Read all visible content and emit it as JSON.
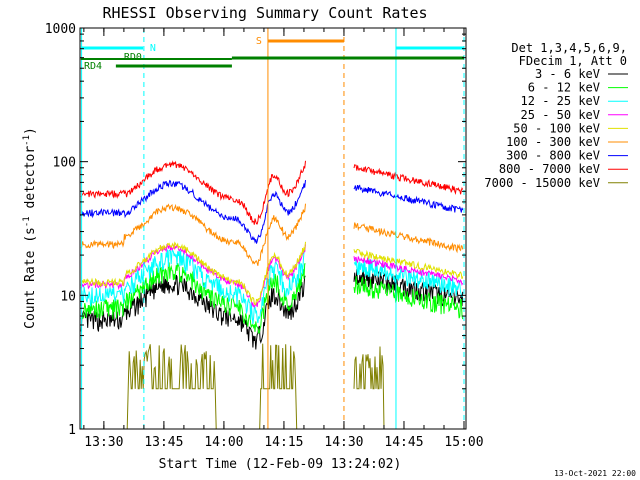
{
  "chart_data": {
    "type": "line",
    "title": "RHESSI Observing Summary Count Rates",
    "xlabel": "Start Time (12-Feb-09 13:24:02)",
    "ylabel_main": "Count Rate (s",
    "ylabel_sup1": "-1",
    "ylabel_mid": " detector",
    "ylabel_sup2": "-1",
    "ylabel_end": ")",
    "yscale": "log",
    "xlim": [
      "13:24:02",
      "15:00:30"
    ],
    "ylim": [
      1,
      1000
    ],
    "x_ticks": [
      "13:30",
      "13:45",
      "14:00",
      "14:15",
      "14:30",
      "14:45",
      "15:00"
    ],
    "y_ticks": [
      "1",
      "10",
      "100",
      "1000"
    ],
    "legend_title": [
      "Det 1,3,4,5,6,9,",
      "FDecim 1, Att 0"
    ],
    "legend_position": "right",
    "series": [
      {
        "name": "3 - 6 keV",
        "color": "#000000",
        "shape": "hump",
        "level": 6.5,
        "sat_level": 14
      },
      {
        "name": "6 - 12 keV",
        "color": "#00ff00",
        "shape": "hump",
        "level": 8,
        "sat_level": 12
      },
      {
        "name": "12 - 25 keV",
        "color": "#00ffff",
        "shape": "hump",
        "level": 10,
        "sat_level": 17
      },
      {
        "name": "25 - 50 keV",
        "color": "#ff00ff",
        "shape": "hump",
        "level": 12,
        "sat_level": 19
      },
      {
        "name": "50 - 100 keV",
        "color": "#e0e000",
        "shape": "hump",
        "level": 12.5,
        "sat_level": 21
      },
      {
        "name": "100 - 300 keV",
        "color": "#ff8c00",
        "shape": "hump",
        "level": 24,
        "sat_level": 33
      },
      {
        "name": "300 - 800 keV",
        "color": "#0000ff",
        "shape": "hump",
        "level": 36,
        "sat_level": 64
      },
      {
        "name": "800 - 7000 keV",
        "color": "#ff0000",
        "shape": "hump",
        "level": 50,
        "sat_level": 90
      },
      {
        "name": "7000 - 15000 keV",
        "color": "#808000",
        "shape": "step",
        "level": 1,
        "sat_level": 4
      }
    ],
    "annotations": [
      {
        "label": "N",
        "color": "#00ffff"
      },
      {
        "label": "RD0",
        "color": "#008000"
      },
      {
        "label": "RD4",
        "color": "#008000"
      },
      {
        "label": "S",
        "color": "#ff8c00"
      }
    ],
    "footer": "13-Oct-2021 22:00"
  }
}
